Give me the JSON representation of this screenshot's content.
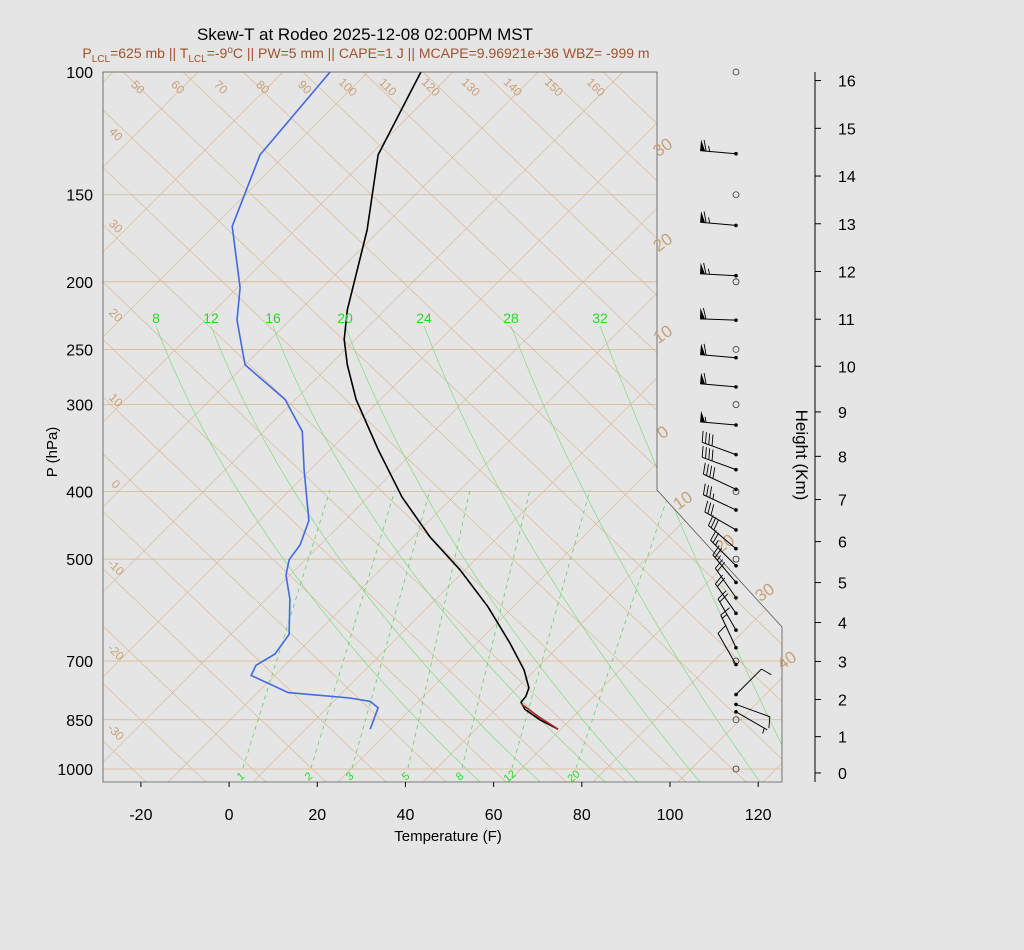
{
  "chart_data": {
    "type": "skew-t",
    "title": "Skew-T at Rodeo 2025-12-08 02:00PM MST",
    "subtitle": [
      {
        "text": "P"
      },
      {
        "text": "LCL",
        "shift": "sub"
      },
      {
        "text": "=625 mb || T"
      },
      {
        "text": "LCL",
        "shift": "sub"
      },
      {
        "text": "=-9"
      },
      {
        "text": "o",
        "shift": "super"
      },
      {
        "text": "C || PW=5 mm || CAPE=1 J || MCAPE=9.96921e+36 WBZ= -999 m"
      }
    ],
    "subtitle_color": "#a0522d",
    "x_label": "Temperature (F)",
    "y_label": "P (hPa)",
    "y2_label": "Height (Km)",
    "xlim": [
      -28.6,
      125.4
    ],
    "xticks": [
      -20,
      0,
      20,
      40,
      60,
      80,
      100,
      120
    ],
    "ylim": [
      1044,
      100
    ],
    "yscale": "log",
    "yticks": [
      1000,
      850,
      700,
      500,
      400,
      300,
      250,
      200,
      150,
      100
    ],
    "y2ticks": [
      0,
      1,
      2,
      3,
      4,
      5,
      6,
      7,
      8,
      9,
      10,
      11,
      12,
      13,
      14,
      15,
      16
    ],
    "series": [
      {
        "color": "#000000",
        "pressure": [
          100,
          131.5,
          168.6,
          219.5,
          242,
          263,
          295,
          348,
          407,
          465,
          518,
          585,
          660,
          721,
          765,
          787,
          802,
          821,
          850,
          877
        ],
        "values": [
          43.5,
          33.8,
          31.3,
          26.8,
          26.1,
          26.8,
          28.8,
          33.8,
          39.2,
          45.6,
          52.4,
          58.7,
          63.7,
          66.9,
          68.0,
          67.3,
          66.2,
          67.1,
          70.5,
          74.6
        ]
      },
      {
        "color": "#4169e1",
        "pressure": [
          100,
          131.5,
          166.5,
          204,
          227,
          263,
          295,
          328,
          372,
          440,
          477,
          501,
          527,
          571,
          641,
          684,
          710,
          734,
          777,
          791,
          800,
          817,
          877
        ],
        "values": [
          22.9,
          7.0,
          0.7,
          2.5,
          1.8,
          3.6,
          12.7,
          16.6,
          17.0,
          18.1,
          16.1,
          13.6,
          12.9,
          13.8,
          13.6,
          10.4,
          6.1,
          5.0,
          13.4,
          27.4,
          32.0,
          33.8,
          32.0
        ]
      },
      {
        "color": "#b22222",
        "pressure": [
          877,
          844,
          808
        ],
        "values": [
          74.6,
          70.5,
          66.4
        ]
      }
    ],
    "winds": {
      "pressure": [
        131,
        166,
        196,
        227,
        257,
        283,
        321,
        354,
        372,
        397,
        425,
        454,
        483,
        511,
        540,
        568,
        598,
        632,
        670,
        708,
        782,
        808,
        828
      ],
      "direction": [
        275,
        275,
        273,
        272,
        275,
        275,
        275,
        290,
        290,
        295,
        295,
        300,
        310,
        315,
        320,
        325,
        325,
        330,
        335,
        330,
        45,
        110,
        120
      ],
      "speed": [
        65,
        65,
        65,
        60,
        60,
        60,
        55,
        40,
        40,
        40,
        35,
        30,
        30,
        25,
        25,
        20,
        20,
        20,
        15,
        10,
        10,
        10,
        5
      ]
    },
    "dry_adiabat_labels": [
      50,
      60,
      70,
      80,
      90,
      100,
      110,
      120,
      130,
      140,
      150,
      160
    ],
    "isotherm_labels_left": [
      40,
      30,
      20,
      10,
      0,
      -10,
      -20,
      -30
    ],
    "isotherm_labels_right": [
      30,
      20,
      10,
      0,
      10,
      20,
      30,
      40
    ],
    "moist_adiabat_labels": [
      8,
      12,
      16,
      20,
      24,
      28,
      32
    ],
    "mixing_ratio_labels": [
      1,
      2,
      3,
      5,
      8,
      12,
      20
    ]
  }
}
